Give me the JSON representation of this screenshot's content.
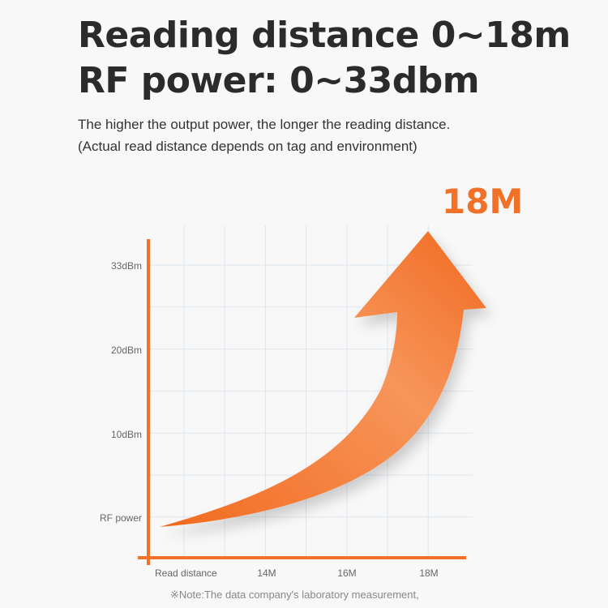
{
  "title_line1": "Reading distance 0~18m",
  "title_line2": "RF power: 0~33dbm",
  "subtitle_line1": "The higher the output power, the longer the reading distance.",
  "subtitle_line2": "(Actual read distance depends on tag and environment)",
  "highlight": "18M",
  "note": "※Note:The data company's laboratory measurement,",
  "accent_color": "#f07127",
  "chart_data": {
    "type": "line",
    "xlabel": "Read distance",
    "ylabel": "RF power",
    "x_ticks": [
      "14M",
      "16M",
      "18M"
    ],
    "y_ticks": [
      "10dBm",
      "20dBm",
      "33dBm"
    ],
    "grid": true,
    "series": [
      {
        "x": [
          0,
          18
        ],
        "y": [
          0,
          33
        ]
      }
    ]
  }
}
